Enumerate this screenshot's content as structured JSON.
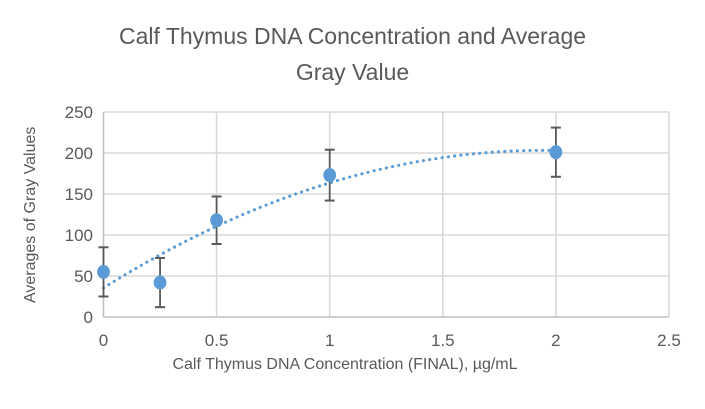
{
  "chart_data": {
    "type": "scatter",
    "title": "Calf Thymus DNA Concentration and Average Gray Value",
    "xlabel": "Calf Thymus DNA Concentration (FINAL), µg/mL",
    "ylabel": "Averages of Gray Values",
    "xlim": [
      0,
      2.5
    ],
    "ylim": [
      0,
      250
    ],
    "xtick_values": [
      0,
      0.5,
      1,
      1.5,
      2,
      2.5
    ],
    "xtick_labels": [
      "0",
      "0.5",
      "1",
      "1.5",
      "2",
      "2.5"
    ],
    "ytick_values": [
      0,
      50,
      100,
      150,
      200,
      250
    ],
    "ytick_labels": [
      "0",
      "50",
      "100",
      "150",
      "200",
      "250"
    ],
    "grid": true,
    "legend": "none",
    "series": [
      {
        "x": [
          0,
          0.25,
          0.5,
          1,
          2
        ],
        "y": [
          55,
          42,
          118,
          173,
          201
        ],
        "y_error": [
          30,
          30,
          29,
          31,
          30
        ],
        "marker": "circle",
        "marker_color": "#5B9BD5"
      }
    ],
    "trendline": {
      "type": "polynomial",
      "order": 2,
      "coefficients": [
        35.5,
        172.4,
        -44.3
      ],
      "x_range": [
        0,
        2
      ],
      "line_style": "dotted",
      "color": "#5B9BD5"
    },
    "colors": {
      "text": "#595959",
      "gridline": "#D9D9D9",
      "axis_line": "#BFBFBF",
      "marker": "#5B9BD5",
      "error_bar": "#595959",
      "background": "#FFFFFF"
    }
  }
}
